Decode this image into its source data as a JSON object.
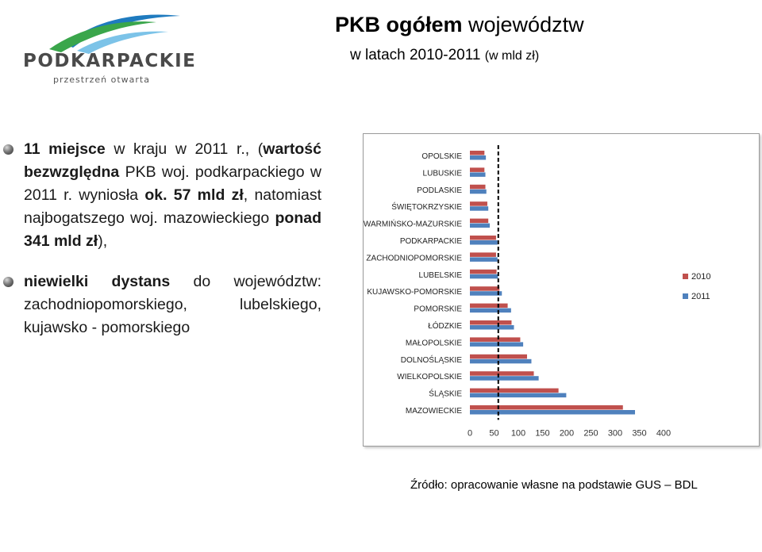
{
  "logo": {
    "name": "PODKARPACKIE",
    "tagline": "przestrzeń otwarta",
    "colors": {
      "swoosh_blue": "#1f7bbf",
      "swoosh_green": "#3aa64b",
      "text": "#4a4a4a"
    }
  },
  "title": {
    "bold": "PKB ogółem",
    "rest": "województw"
  },
  "subtitle": {
    "main": "w latach 2010-2011",
    "unit": "(w mld zł)"
  },
  "bullets": [
    {
      "parts": [
        {
          "text": "11 miejsce",
          "bold": true
        },
        {
          "text": " w kraju w 2011 r., (",
          "bold": false
        },
        {
          "text": "wartość bezwzględna",
          "bold": true
        },
        {
          "text": " PKB woj. podkarpackiego w 2011 r. wyniosła ",
          "bold": false
        },
        {
          "text": "ok. 57 mld zł",
          "bold": true
        },
        {
          "text": ", natomiast najbogatszego woj. mazowieckiego ",
          "bold": false
        },
        {
          "text": "ponad 341 mld zł",
          "bold": true
        },
        {
          "text": "),",
          "bold": false
        }
      ]
    },
    {
      "parts": [
        {
          "text": "niewielki dystans",
          "bold": true
        },
        {
          "text": " do województw: zachodniopomorskiego, lubelskiego, kujawsko - pomorskiego",
          "bold": false
        }
      ]
    }
  ],
  "source": "Źródło: opracowanie własne na podstawie  GUS – BDL",
  "chart_data": {
    "type": "bar",
    "orientation": "horizontal",
    "categories": [
      "OPOLSKIE",
      "LUBUSKIE",
      "PODLASKIE",
      "ŚWIĘTOKRZYSKIE",
      "WARMIŃSKO-MAZURSKIE",
      "PODKARPACKIE",
      "ZACHODNIOPOMORSKIE",
      "LUBELSKIE",
      "KUJAWSKO-POMORSKIE",
      "POMORSKIE",
      "ŁÓDZKIE",
      "MAŁOPOLSKIE",
      "DOLNOŚLĄSKIE",
      "WIELKOPOLSKIE",
      "ŚLĄSKIE",
      "MAZOWIECKIE"
    ],
    "series": [
      {
        "name": "2010",
        "color": "#c0504d",
        "values": [
          30,
          30,
          32,
          36,
          38,
          54,
          54,
          55,
          61,
          78,
          86,
          104,
          118,
          132,
          183,
          316
        ]
      },
      {
        "name": "2011",
        "color": "#4f81bd",
        "values": [
          33,
          32,
          34,
          38,
          41,
          57,
          57,
          58,
          66,
          85,
          91,
          110,
          127,
          142,
          199,
          341
        ]
      }
    ],
    "xticks": [
      "0",
      "50",
      "100",
      "150",
      "200",
      "250",
      "300",
      "350",
      "400"
    ],
    "xlim": [
      0,
      400
    ],
    "reference_line": {
      "value": 57,
      "style": "dashed",
      "color": "#000000"
    },
    "legend": "right",
    "grid": false
  }
}
